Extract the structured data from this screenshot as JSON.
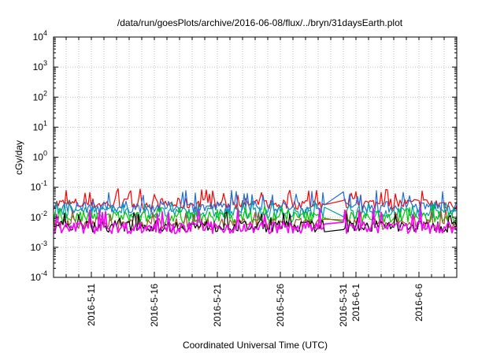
{
  "chart_data": {
    "type": "line",
    "title": "/data/run/goesPlots/archive/2016-06-08/flux/../bryn/31daysEarth.plot",
    "xlabel": "Coordinated Universal Time (UTC)",
    "ylabel": "cGy/day",
    "y_scale": "log",
    "ylim": [
      0.0001,
      10000
    ],
    "xlim": [
      "2016-05-08",
      "2016-06-09"
    ],
    "grid": true,
    "y_tick_labels": [
      {
        "base": "10",
        "exp": "-4"
      },
      {
        "base": "10",
        "exp": "-3"
      },
      {
        "base": "10",
        "exp": "-2"
      },
      {
        "base": "10",
        "exp": "-1"
      },
      {
        "base": "10",
        "exp": "0"
      },
      {
        "base": "10",
        "exp": "1"
      },
      {
        "base": "10",
        "exp": "2"
      },
      {
        "base": "10",
        "exp": "3"
      },
      {
        "base": "10",
        "exp": "4"
      }
    ],
    "x_tick_labels": [
      "2016-5-11",
      "2016-5-16",
      "2016-5-21",
      "2016-5-26",
      "2016-5-31",
      "2016-6-1",
      "2016-6-6"
    ],
    "data_gap": [
      "2016-05-29",
      "2016-05-31"
    ],
    "series": [
      {
        "color": "#ff0000",
        "typical": 0.028,
        "spike": 0.09
      },
      {
        "color": "#1f6fe0",
        "typical": 0.022,
        "spike": 0.08
      },
      {
        "color": "#00a0a0",
        "typical": 0.014,
        "spike": 0.035
      },
      {
        "color": "#00cc00",
        "typical": 0.01,
        "spike": 0.025
      },
      {
        "color": "#a0522d",
        "typical": 0.006,
        "spike": 0.018
      },
      {
        "color": "#000000",
        "typical": 0.005,
        "spike": 0.015
      },
      {
        "color": "#ff00ff",
        "typical": 0.0045,
        "spike": 0.02
      }
    ]
  }
}
